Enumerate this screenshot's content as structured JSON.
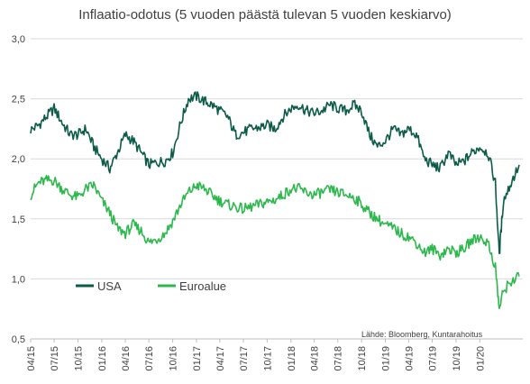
{
  "chart_data": {
    "type": "line",
    "title": "Inflaatio-odotus (5 vuoden päästä tulevan 5 vuoden keskiarvo)",
    "xlabel": "",
    "ylabel": "",
    "ylim": [
      0.5,
      3.0
    ],
    "yticks": [
      "0,5",
      "1,0",
      "1,5",
      "2,0",
      "2,5",
      "3,0"
    ],
    "xticks": [
      "04/15",
      "07/15",
      "10/15",
      "01/16",
      "04/16",
      "07/16",
      "10/16",
      "01/17",
      "04/17",
      "07/17",
      "10/17",
      "01/18",
      "04/18",
      "07/18",
      "10/18",
      "01/19",
      "04/19",
      "07/19",
      "10/19",
      "01/20"
    ],
    "grid": "horizontal",
    "legend": "lower-left",
    "source": "Lähde: Bloomberg, Kuntarahoitus",
    "series": [
      {
        "name": "USA",
        "color": "#0b5b47",
        "x": [
          "2015-04-01",
          "2015-05-01",
          "2015-06-01",
          "2015-07-01",
          "2015-08-01",
          "2015-09-01",
          "2015-10-01",
          "2015-11-01",
          "2015-12-01",
          "2016-01-01",
          "2016-02-01",
          "2016-03-01",
          "2016-04-01",
          "2016-05-01",
          "2016-06-01",
          "2016-07-01",
          "2016-08-01",
          "2016-09-01",
          "2016-10-01",
          "2016-11-01",
          "2016-12-01",
          "2017-01-01",
          "2017-02-01",
          "2017-03-01",
          "2017-04-01",
          "2017-05-01",
          "2017-06-01",
          "2017-07-01",
          "2017-08-01",
          "2017-09-01",
          "2017-10-01",
          "2017-11-01",
          "2017-12-01",
          "2018-01-01",
          "2018-02-01",
          "2018-03-01",
          "2018-04-01",
          "2018-05-01",
          "2018-06-01",
          "2018-07-01",
          "2018-08-01",
          "2018-09-01",
          "2018-10-01",
          "2018-11-01",
          "2018-12-01",
          "2019-01-01",
          "2019-02-01",
          "2019-03-01",
          "2019-04-01",
          "2019-05-01",
          "2019-06-01",
          "2019-07-01",
          "2019-08-01",
          "2019-09-01",
          "2019-10-01",
          "2019-11-01",
          "2019-12-01",
          "2020-01-01",
          "2020-02-01",
          "2020-03-01",
          "2020-03-16",
          "2020-04-01",
          "2020-05-01",
          "2020-06-01"
        ],
        "values": [
          2.24,
          2.28,
          2.35,
          2.42,
          2.3,
          2.2,
          2.2,
          2.25,
          2.1,
          2.0,
          1.92,
          2.05,
          2.2,
          2.15,
          2.05,
          1.95,
          1.97,
          1.98,
          2.05,
          2.3,
          2.5,
          2.52,
          2.48,
          2.45,
          2.4,
          2.35,
          2.2,
          2.22,
          2.25,
          2.26,
          2.28,
          2.25,
          2.35,
          2.42,
          2.45,
          2.4,
          2.38,
          2.4,
          2.45,
          2.42,
          2.4,
          2.45,
          2.4,
          2.2,
          2.1,
          2.15,
          2.25,
          2.2,
          2.25,
          2.2,
          2.0,
          1.95,
          1.92,
          2.05,
          1.95,
          1.98,
          2.05,
          2.1,
          2.05,
          1.8,
          1.2,
          1.65,
          1.8,
          1.95
        ]
      },
      {
        "name": "Euroalue",
        "color": "#2db84d",
        "x": [
          "2015-04-01",
          "2015-05-01",
          "2015-06-01",
          "2015-07-01",
          "2015-08-01",
          "2015-09-01",
          "2015-10-01",
          "2015-11-01",
          "2015-12-01",
          "2016-01-01",
          "2016-02-01",
          "2016-03-01",
          "2016-04-01",
          "2016-05-01",
          "2016-06-01",
          "2016-07-01",
          "2016-08-01",
          "2016-09-01",
          "2016-10-01",
          "2016-11-01",
          "2016-12-01",
          "2017-01-01",
          "2017-02-01",
          "2017-03-01",
          "2017-04-01",
          "2017-05-01",
          "2017-06-01",
          "2017-07-01",
          "2017-08-01",
          "2017-09-01",
          "2017-10-01",
          "2017-11-01",
          "2017-12-01",
          "2018-01-01",
          "2018-02-01",
          "2018-03-01",
          "2018-04-01",
          "2018-05-01",
          "2018-06-01",
          "2018-07-01",
          "2018-08-01",
          "2018-09-01",
          "2018-10-01",
          "2018-11-01",
          "2018-12-01",
          "2019-01-01",
          "2019-02-01",
          "2019-03-01",
          "2019-04-01",
          "2019-05-01",
          "2019-06-01",
          "2019-07-01",
          "2019-08-01",
          "2019-09-01",
          "2019-10-01",
          "2019-11-01",
          "2019-12-01",
          "2020-01-01",
          "2020-02-01",
          "2020-03-01",
          "2020-03-16",
          "2020-04-01",
          "2020-05-01",
          "2020-06-01"
        ],
        "values": [
          1.7,
          1.8,
          1.82,
          1.82,
          1.75,
          1.7,
          1.68,
          1.75,
          1.78,
          1.65,
          1.55,
          1.42,
          1.38,
          1.45,
          1.4,
          1.3,
          1.33,
          1.38,
          1.48,
          1.62,
          1.72,
          1.78,
          1.75,
          1.7,
          1.65,
          1.62,
          1.6,
          1.58,
          1.6,
          1.62,
          1.64,
          1.66,
          1.7,
          1.75,
          1.75,
          1.72,
          1.7,
          1.72,
          1.74,
          1.72,
          1.7,
          1.68,
          1.62,
          1.55,
          1.5,
          1.45,
          1.42,
          1.38,
          1.35,
          1.3,
          1.22,
          1.25,
          1.2,
          1.25,
          1.22,
          1.25,
          1.32,
          1.35,
          1.3,
          1.1,
          0.75,
          0.9,
          0.98,
          1.02
        ]
      }
    ]
  }
}
